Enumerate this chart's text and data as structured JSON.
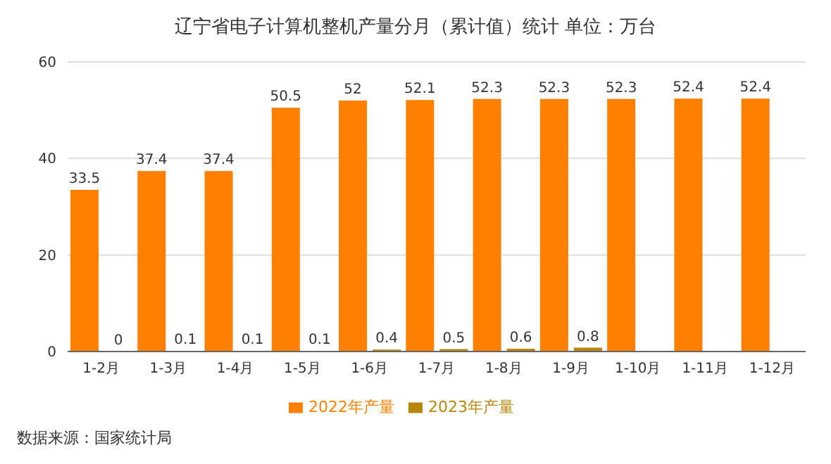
{
  "chart_data": {
    "type": "bar",
    "title": "辽宁省电子计算机整机产量分月（累计值）统计  单位：万台",
    "categories": [
      "1-2月",
      "1-3月",
      "1-4月",
      "1-5月",
      "1-6月",
      "1-7月",
      "1-8月",
      "1-9月",
      "1-10月",
      "1-11月",
      "1-12月"
    ],
    "series": [
      {
        "name": "2022年产量",
        "color": "#ff8000",
        "values": [
          33.5,
          37.4,
          37.4,
          50.5,
          52,
          52.1,
          52.3,
          52.3,
          52.3,
          52.4,
          52.4
        ]
      },
      {
        "name": "2023年产量",
        "color": "#b8860b",
        "values": [
          0,
          0.1,
          0.1,
          0.1,
          0.4,
          0.5,
          0.6,
          0.8,
          null,
          null,
          null
        ]
      }
    ],
    "ylim": [
      0,
      60
    ],
    "yticks": [
      0,
      20,
      40,
      60
    ],
    "grid": "y",
    "legend": "bottom",
    "data_labels": true,
    "annotations": [
      "数据来源：国家统计局"
    ]
  }
}
